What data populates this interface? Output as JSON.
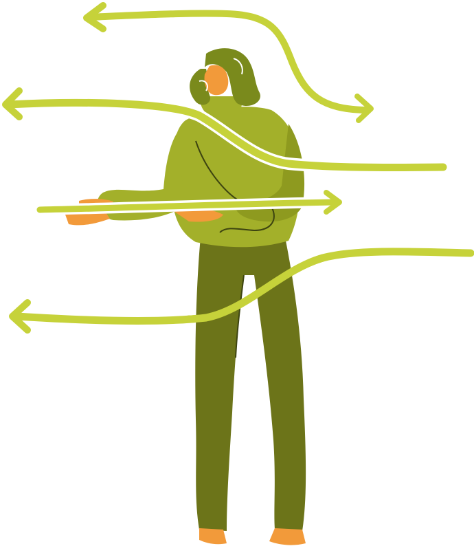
{
  "illustration": {
    "subject": "person-standing-in-flowing-arrows",
    "colors": {
      "background": "#ffffff",
      "arrow": "#c6d23a",
      "arrow_outline": "#ffffff",
      "sweater": "#a3b02a",
      "sweater_shadow": "#8e9a1f",
      "pants": "#6c7419",
      "hair": "#7a8a1c",
      "skin": "#f29a3a",
      "line": "#3d4410"
    },
    "arrows": [
      {
        "direction": "left"
      },
      {
        "direction": "left"
      },
      {
        "direction": "right"
      },
      {
        "direction": "left"
      },
      {
        "direction": "right"
      }
    ]
  }
}
